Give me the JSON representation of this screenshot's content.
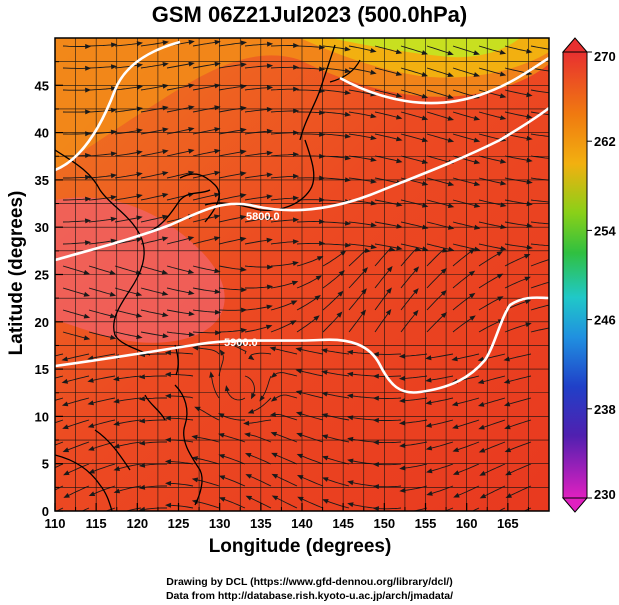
{
  "title": "GSM 06Z21Jul2023 (500.0hPa)",
  "xlabel": "Longitude (degrees)",
  "ylabel": "Latitude  (degrees)",
  "x_ticks": [
    "110",
    "115",
    "120",
    "125",
    "130",
    "135",
    "140",
    "145",
    "150",
    "155",
    "160",
    "165"
  ],
  "y_ticks": [
    "0",
    "5",
    "10",
    "15",
    "20",
    "25",
    "30",
    "35",
    "40",
    "45"
  ],
  "colorbar_ticks": [
    "270",
    "262",
    "254",
    "246",
    "238",
    "230"
  ],
  "contour_labels": [
    "5800.0",
    "5900.0"
  ],
  "credit_line1": "Drawing by DCL (https://www.gfd-dennou.org/library/dcl/)",
  "credit_line2": "Data from http://database.rish.kyoto-u.ac.jp/arch/jmadata/",
  "colors": {
    "contour": "#ffffff",
    "coast": "#000000",
    "warm": "#e8391f",
    "hot": "#f06060",
    "mid": "#f26c10",
    "cool": "#f2b010",
    "cold": "#c8e020"
  }
}
